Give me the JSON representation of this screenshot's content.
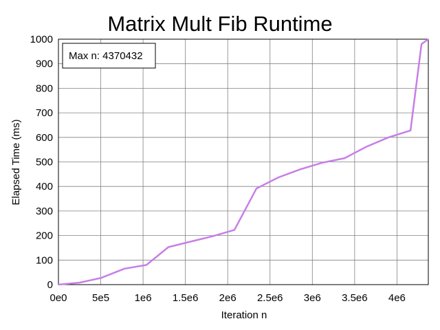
{
  "chart_data": {
    "type": "line",
    "title": "Matrix Mult Fib Runtime",
    "xlabel": "Iteration n",
    "ylabel": "Elapsed Time (ms)",
    "xlim": [
      0,
      4370432
    ],
    "ylim": [
      0,
      1000
    ],
    "x_ticks": [
      0,
      500000,
      1000000,
      1500000,
      2000000,
      2500000,
      3000000,
      3500000,
      4000000
    ],
    "x_tick_labels": [
      "0e0",
      "5e5",
      "1e6",
      "1.5e6",
      "2e6",
      "2.5e6",
      "3e6",
      "3.5e6",
      "4e6"
    ],
    "y_ticks": [
      0,
      100,
      200,
      300,
      400,
      500,
      600,
      700,
      800,
      900,
      1000
    ],
    "y_tick_labels": [
      "0",
      "100",
      "200",
      "300",
      "400",
      "500",
      "600",
      "700",
      "800",
      "900",
      "1000"
    ],
    "grid": true,
    "annotation": "Max n: 4370432",
    "line_color": "#c77ee6",
    "series": [
      {
        "x": [
          0,
          250000,
          500000,
          780000,
          1040000,
          1300000,
          1560000,
          1820000,
          2080000,
          2340000,
          2600000,
          2860000,
          3120000,
          3380000,
          3640000,
          3900000,
          4160000,
          4290000,
          4370432
        ],
        "y": [
          0,
          8,
          27,
          65,
          80,
          153,
          175,
          197,
          223,
          392,
          437,
          470,
          497,
          515,
          562,
          600,
          628,
          980,
          1000
        ]
      }
    ]
  }
}
